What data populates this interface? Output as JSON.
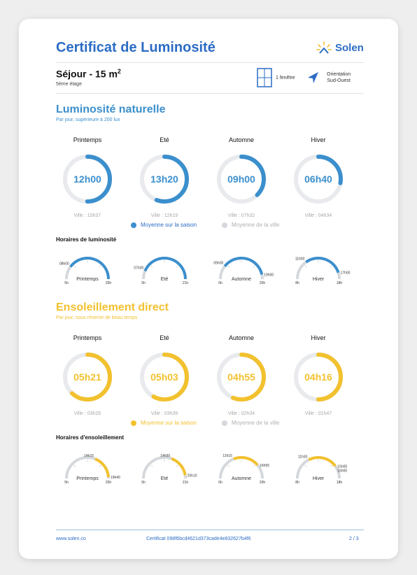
{
  "header": {
    "title": "Certificat de Luminosité",
    "brand": "Solen"
  },
  "room": {
    "name": "Séjour - 15 m",
    "unit_exp": "2",
    "floor": "5ème étage",
    "windows": "1 fenêtre",
    "orientation_line1": "Orientation",
    "orientation_line2": "Sud-Ouest"
  },
  "colors": {
    "primary": "#2b6cc4",
    "light_blue": "#3b8fcd",
    "yellow": "#f2c12e",
    "gray_track": "#d5d8dc"
  },
  "luminosite": {
    "title": "Luminosité naturelle",
    "subtitle": "Par jour, supérieure à 200 lux",
    "seasons": [
      {
        "name": "Printemps",
        "value": "12h00",
        "ville": "Ville : 10h37",
        "fraction": 0.5,
        "ville_fraction": 0.44
      },
      {
        "name": "Eté",
        "value": "13h20",
        "ville": "Ville : 12h19",
        "fraction": 0.556,
        "ville_fraction": 0.51
      },
      {
        "name": "Automne",
        "value": "09h00",
        "ville": "Ville : 07h32",
        "fraction": 0.375,
        "ville_fraction": 0.31
      },
      {
        "name": "Hiver",
        "value": "06h40",
        "ville": "Ville : 04h34",
        "fraction": 0.278,
        "ville_fraction": 0.19
      }
    ],
    "legend_season": "Moyenne sur la saison",
    "legend_city": "Moyenne de la ville",
    "horaires_title": "Horaires de luminosité",
    "horaires": [
      {
        "name": "Printemps",
        "min": "5h",
        "max": "20h",
        "start": "08h00",
        "end": "",
        "start_frac": 0.2,
        "end_frac": 1.0
      },
      {
        "name": "Eté",
        "min": "5h",
        "max": "21h",
        "start": "07h00",
        "end": "",
        "start_frac": 0.125,
        "end_frac": 1.0
      },
      {
        "name": "Automne",
        "min": "6h",
        "max": "20h",
        "start": "09h00",
        "end": "19h00",
        "start_frac": 0.21,
        "end_frac": 0.93
      },
      {
        "name": "Hiver",
        "min": "8h",
        "max": "18h",
        "start": "11h00",
        "end": "17h00",
        "start_frac": 0.3,
        "end_frac": 0.9
      }
    ]
  },
  "ensoleillement": {
    "title": "Ensoleillement direct",
    "subtitle": "Par jour, sous réserve de beau temps",
    "seasons": [
      {
        "name": "Printemps",
        "value": "05h21",
        "ville": "Ville : 03h26",
        "fraction": 0.62,
        "ville_fraction": 0.4
      },
      {
        "name": "Eté",
        "value": "05h03",
        "ville": "Ville : 03h39",
        "fraction": 0.58,
        "ville_fraction": 0.42
      },
      {
        "name": "Automne",
        "value": "04h55",
        "ville": "Ville : 02h34",
        "fraction": 0.56,
        "ville_fraction": 0.3
      },
      {
        "name": "Hiver",
        "value": "04h16",
        "ville": "Ville : 01h47",
        "fraction": 0.5,
        "ville_fraction": 0.21
      }
    ],
    "legend_season": "Moyenne sur la saison",
    "legend_city": "Moyenne de la ville",
    "horaires_title": "Horaires d'ensoleillement",
    "horaires": [
      {
        "name": "Printemps",
        "min": "5h",
        "max": "20h",
        "start": "14h15",
        "end": "19h40",
        "start_frac": 0.62,
        "end_frac": 0.98
      },
      {
        "name": "Eté",
        "min": "5h",
        "max": "21h",
        "start": "14h50",
        "end": "20h10",
        "start_frac": 0.61,
        "end_frac": 0.95
      },
      {
        "name": "Automne",
        "min": "6h",
        "max": "20h",
        "start": "11h15",
        "end": "16h55",
        "start_frac": 0.38,
        "end_frac": 0.78
      },
      {
        "name": "Hiver",
        "min": "8h",
        "max": "18h",
        "start": "11h30",
        "end": "15h05",
        "end2": "16h00",
        "start_frac": 0.35,
        "end_frac": 0.8
      }
    ]
  },
  "footer": {
    "site": "www.solen.co",
    "certificate": "Certificat 098f6bcd4621d373cade4e832627b4f6",
    "page": "2 / 3"
  }
}
